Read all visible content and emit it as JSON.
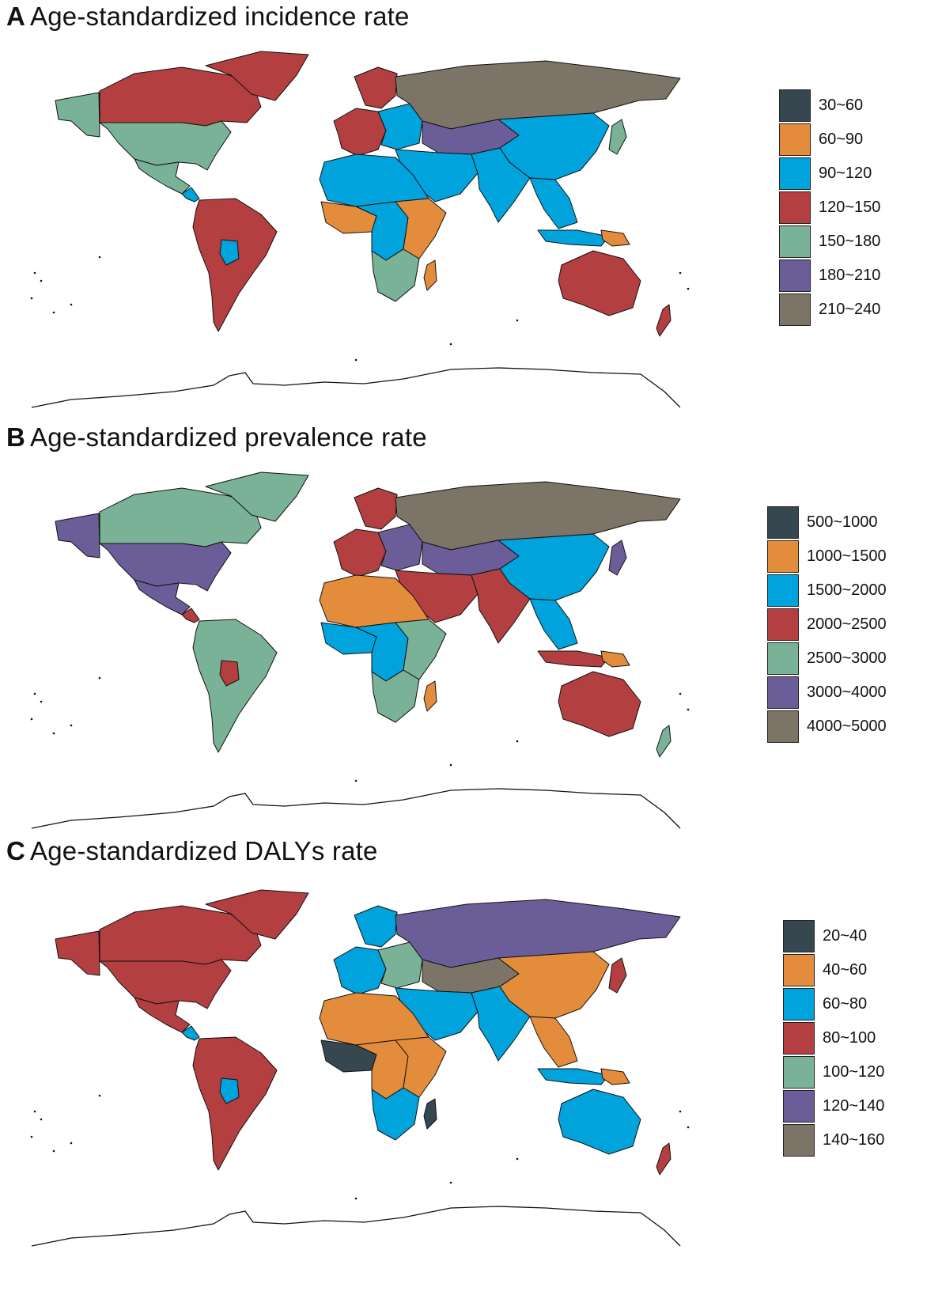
{
  "colors": {
    "c1": "#37474f",
    "c2": "#e38d3c",
    "c3": "#00a3dc",
    "c4": "#b33f40",
    "c5": "#79b297",
    "c6": "#6b5e98",
    "c7": "#7d7468"
  },
  "panels": [
    {
      "letter": "A",
      "title": "Age-standardized incidence rate",
      "legend": [
        "30~60",
        "60~90",
        "90~120",
        "120~150",
        "150~180",
        "180~210",
        "210~240"
      ],
      "regions": {
        "alaska": "c5",
        "canada": "c4",
        "greenland": "c4",
        "usa": "c5",
        "mexico": "c5",
        "central_america": "c3",
        "south_america": "c4",
        "bolivia": "c3",
        "western_europe": "c4",
        "scandinavia": "c4",
        "eastern_europe": "c3",
        "russia": "c7",
        "central_asia": "c6",
        "china": "c3",
        "japan": "c5",
        "middle_east": "c3",
        "south_asia": "c3",
        "southeast_asia": "c3",
        "indonesia": "c3",
        "north_africa": "c3",
        "west_africa": "c2",
        "central_africa": "c3",
        "east_africa": "c2",
        "southern_africa": "c5",
        "madagascar": "c2",
        "australia": "c4",
        "new_zealand": "c4",
        "png": "c2"
      }
    },
    {
      "letter": "B",
      "title": "Age-standardized prevalence rate",
      "legend": [
        "500~1000",
        "1000~1500",
        "1500~2000",
        "2000~2500",
        "2500~3000",
        "3000~4000",
        "4000~5000"
      ],
      "regions": {
        "alaska": "c6",
        "canada": "c5",
        "greenland": "c5",
        "usa": "c6",
        "mexico": "c6",
        "central_america": "c4",
        "south_america": "c5",
        "bolivia": "c4",
        "western_europe": "c4",
        "scandinavia": "c4",
        "eastern_europe": "c6",
        "russia": "c7",
        "central_asia": "c6",
        "china": "c3",
        "japan": "c6",
        "middle_east": "c4",
        "south_asia": "c4",
        "southeast_asia": "c3",
        "indonesia": "c4",
        "north_africa": "c2",
        "west_africa": "c3",
        "central_africa": "c3",
        "east_africa": "c5",
        "southern_africa": "c5",
        "madagascar": "c2",
        "australia": "c4",
        "new_zealand": "c5",
        "png": "c2"
      }
    },
    {
      "letter": "C",
      "title": "Age-standardized DALYs rate",
      "legend": [
        "20~40",
        "40~60",
        "60~80",
        "80~100",
        "100~120",
        "120~140",
        "140~160"
      ],
      "regions": {
        "alaska": "c4",
        "canada": "c4",
        "greenland": "c4",
        "usa": "c4",
        "mexico": "c4",
        "central_america": "c3",
        "south_america": "c4",
        "bolivia": "c3",
        "western_europe": "c3",
        "scandinavia": "c3",
        "eastern_europe": "c5",
        "russia": "c6",
        "central_asia": "c7",
        "china": "c2",
        "japan": "c4",
        "middle_east": "c3",
        "south_asia": "c3",
        "southeast_asia": "c2",
        "indonesia": "c3",
        "north_africa": "c2",
        "west_africa": "c1",
        "central_africa": "c2",
        "east_africa": "c2",
        "southern_africa": "c3",
        "madagascar": "c1",
        "australia": "c3",
        "new_zealand": "c4",
        "png": "c2"
      }
    }
  ]
}
